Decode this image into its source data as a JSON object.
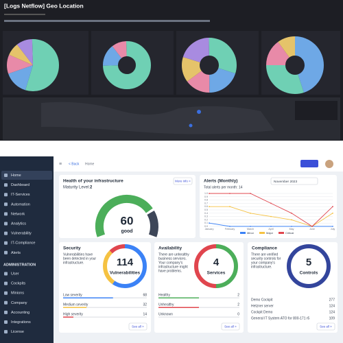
{
  "top_dashboard": {
    "title": "[Logs Netflow] Geo Location"
  },
  "sidebar": {
    "items": [
      "Home",
      "Dashboard",
      "IT-Services",
      "Automation",
      "Network",
      "Analytics",
      "Vulnerability",
      "IT-Compliance",
      "Alerts"
    ],
    "section": "ADMINISTRATION",
    "admin_items": [
      "User",
      "Cockpits",
      "Minions",
      "Company",
      "Accounting",
      "Integrations",
      "License"
    ]
  },
  "header": {
    "back": "< Back",
    "breadcrumb": "Home"
  },
  "health": {
    "title": "Health of your infrastructure",
    "more": "More info >",
    "maturity_label": "Maturity Level:",
    "maturity": 2,
    "score": 60,
    "score_label": "good"
  },
  "chart_data": {
    "type": "line",
    "title": "Alerts (Monthly)",
    "subtitle": "Total alerts per month: 14",
    "period": "November 2023",
    "categories": [
      "January",
      "February",
      "March",
      "April",
      "May",
      "June",
      "July"
    ],
    "series": [
      {
        "name": "Minor",
        "color": "#3b82f6",
        "values": [
          0.1,
          0,
          0,
          0,
          0,
          0,
          0
        ]
      },
      {
        "name": "Major",
        "color": "#f5c242",
        "values": [
          0.6,
          0.6,
          0.4,
          0.3,
          0.2,
          0,
          0.4
        ]
      },
      {
        "name": "Critical",
        "color": "#e0464e",
        "values": [
          1,
          1,
          1,
          0.7,
          0.4,
          0,
          0.6
        ]
      }
    ],
    "ylim": [
      0,
      1
    ],
    "yticks": [
      {
        "value": 0,
        "label": "0.0"
      },
      0.1,
      0.2,
      0.3,
      0.4,
      0.5,
      0.6,
      0.7,
      0.8,
      0.9,
      {
        "value": 1,
        "label": "1.0"
      }
    ],
    "grid": true
  },
  "security": {
    "title": "Security",
    "description": [
      "Vulnerabilities have",
      "been detected in your",
      "infrastructure."
    ],
    "total": 114,
    "total_label": "Vulnerabilities",
    "rows": [
      {
        "label": "Low severity",
        "value": 68,
        "color": "#3b82f6"
      },
      {
        "label": "Medium severity",
        "value": 32,
        "color": "#f5c242"
      },
      {
        "label": "High severity",
        "value": 14,
        "color": "#e0464e"
      }
    ],
    "see_all": "See all >"
  },
  "availability": {
    "title": "Availability",
    "description": [
      "There are unhealthy",
      "business services.",
      "Your company's",
      "infrastructure might",
      "have problems."
    ],
    "total": 4,
    "total_label": "Services",
    "rows": [
      {
        "label": "Healthy",
        "value": 2,
        "color": "#4cae5a"
      },
      {
        "label": "Unhealthy",
        "value": 2,
        "color": "#e0464e"
      },
      {
        "label": "Unknown",
        "value": 0,
        "color": "#9ca3af"
      }
    ],
    "see_all": "See all >"
  },
  "compliance": {
    "title": "Compliance",
    "description": [
      "There are verified",
      "security controls for",
      "your company's",
      "infrastructure."
    ],
    "total": 5,
    "total_label": "Controls",
    "rows": [
      {
        "label": "Demo Cockpit",
        "value": 277
      },
      {
        "label": "Hetzner server",
        "value": 124
      },
      {
        "label": "Cockpit Demo",
        "value": 124
      },
      {
        "label": "General IT System ATO for 800-171 r5",
        "value": 109
      }
    ],
    "see_all": "See all >"
  }
}
